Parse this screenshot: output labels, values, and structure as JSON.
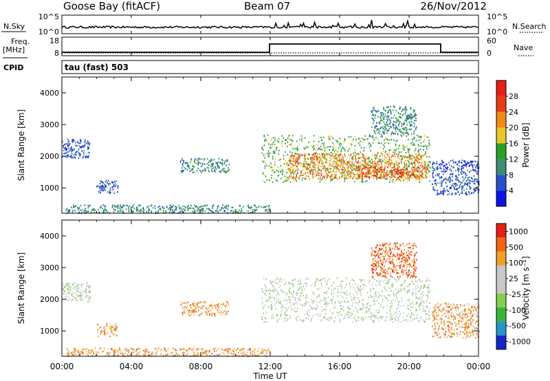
{
  "header": {
    "station": "Goose Bay (fitACF)",
    "beam": "Beam 07",
    "date": "26/Nov/2012"
  },
  "nsky_panel": {
    "left_label": "N.Sky",
    "left_ticks": [
      "10^5",
      "10^0"
    ],
    "right_label": "N.Search",
    "right_ticks": [
      "10^5",
      "10^0"
    ]
  },
  "freq_panel": {
    "left_label_line1": "Freq.",
    "left_label_line2": "[MHz]",
    "left_ticks": [
      "18",
      "8"
    ],
    "right_label": "Nave",
    "right_ticks": [
      "60",
      "0"
    ]
  },
  "cpid": {
    "label": "CPID",
    "value": "tau (fast) 503"
  },
  "chart_data": [
    {
      "type": "heatmap",
      "title": "",
      "ylabel": "Slant Range [km]",
      "yticks": [
        "1000",
        "2000",
        "3000",
        "4000"
      ],
      "ylim": [
        200,
        4500
      ],
      "colorbar_label": "Power [dB]",
      "colorbar_ticks": [
        "4",
        "8",
        "12",
        "16",
        "20",
        "24",
        "28"
      ],
      "colors": [
        "#0a14e6",
        "#2850c8",
        "#3c8c78",
        "#28a028",
        "#e6c828",
        "#f08c14",
        "#e63c14",
        "#e61e14"
      ],
      "regions": [
        {
          "t": [
            0.0,
            1.6
          ],
          "r": [
            1950,
            2550
          ],
          "level": 1
        },
        {
          "t": [
            1.9,
            3.2
          ],
          "r": [
            850,
            1250
          ],
          "level": 1
        },
        {
          "t": [
            6.8,
            9.6
          ],
          "r": [
            1500,
            1950
          ],
          "level": 2
        },
        {
          "t": [
            11.5,
            21.2
          ],
          "r": [
            1200,
            2700
          ],
          "level": 3
        },
        {
          "t": [
            13.0,
            21.0
          ],
          "r": [
            1300,
            2100
          ],
          "level": 5
        },
        {
          "t": [
            17.0,
            20.8
          ],
          "r": [
            1350,
            1700
          ],
          "level": 6
        },
        {
          "t": [
            21.3,
            24.0
          ],
          "r": [
            800,
            1900
          ],
          "level": 1
        },
        {
          "t": [
            17.8,
            20.4
          ],
          "r": [
            2700,
            3600
          ],
          "level": 2
        },
        {
          "t": [
            0.2,
            12.0
          ],
          "r": [
            220,
            480
          ],
          "level": 2
        }
      ]
    },
    {
      "type": "heatmap",
      "title": "",
      "ylabel": "Slant Range [km]",
      "yticks": [
        "1000",
        "2000",
        "3000",
        "4000"
      ],
      "ylim": [
        200,
        4500
      ],
      "xlabel": "Time UT",
      "xticks": [
        "00:00",
        "04:00",
        "08:00",
        "12:00",
        "16:00",
        "20:00",
        "00:00"
      ],
      "colorbar_label": "Velocity [m s⁻¹]",
      "colorbar_ticks": [
        "1000",
        "500",
        "100",
        "25",
        "-25",
        "-100",
        "-500",
        "-1000"
      ],
      "colors": [
        "#1428c8",
        "#2896c8",
        "#3cb43c",
        "#82d250",
        "#c8c8c8",
        "#c8c8c8",
        "#f0a028",
        "#f06414",
        "#e61e14"
      ],
      "regions": [
        {
          "t": [
            0.0,
            1.6
          ],
          "r": [
            1950,
            2550
          ],
          "level": 4
        },
        {
          "t": [
            2.0,
            3.2
          ],
          "r": [
            850,
            1250
          ],
          "level": 6
        },
        {
          "t": [
            6.8,
            9.6
          ],
          "r": [
            1500,
            1950
          ],
          "level": 6
        },
        {
          "t": [
            11.5,
            21.2
          ],
          "r": [
            1300,
            2700
          ],
          "level": 4
        },
        {
          "t": [
            21.3,
            24.0
          ],
          "r": [
            800,
            1900
          ],
          "level": 6
        },
        {
          "t": [
            17.8,
            20.4
          ],
          "r": [
            2700,
            3800
          ],
          "level": 7
        },
        {
          "t": [
            0.2,
            12.0
          ],
          "r": [
            220,
            480
          ],
          "level": 6
        }
      ]
    }
  ]
}
